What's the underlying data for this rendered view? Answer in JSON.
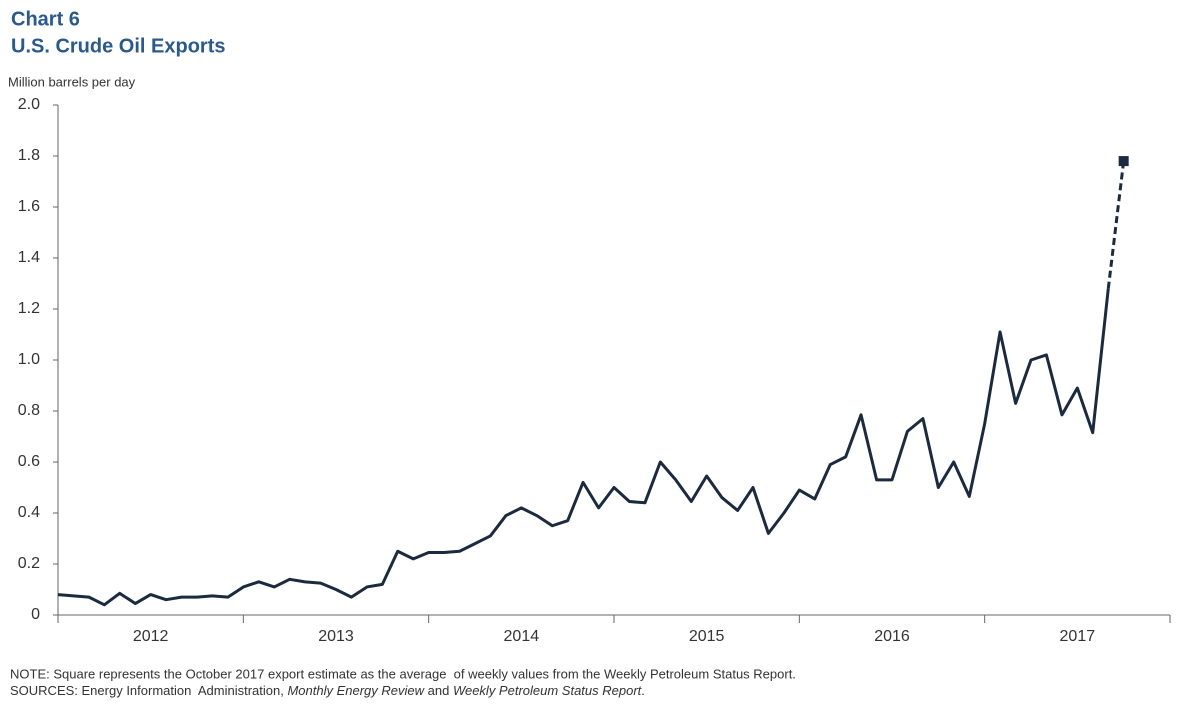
{
  "chart_data": {
    "type": "line",
    "title": "Chart 6",
    "subtitle": "U.S. Crude Oil Exports",
    "ylabel": "Million barrels per day",
    "xlim": [
      2012,
      2018
    ],
    "xticks": [
      2012,
      2013,
      2014,
      2015,
      2016,
      2017,
      2018
    ],
    "categories": [
      "2012",
      "2013",
      "2014",
      "2015",
      "2016",
      "2017"
    ],
    "ylim": [
      0,
      2
    ],
    "yticks": [
      0,
      0.2,
      0.4,
      0.6,
      0.8,
      {
        "value": 1,
        "label": "1.0"
      },
      1.2,
      1.4,
      1.6,
      1.8,
      {
        "value": 2,
        "label": "2.0"
      }
    ],
    "grid": false,
    "color": "#1b2a3f",
    "x": [
      2012,
      2012.083,
      2012.167,
      2012.25,
      2012.333,
      2012.417,
      2012.5,
      2012.583,
      2012.667,
      2012.75,
      2012.833,
      2012.917,
      2013,
      2013.083,
      2013.167,
      2013.25,
      2013.333,
      2013.417,
      2013.5,
      2013.583,
      2013.667,
      2013.75,
      2013.833,
      2013.917,
      2014,
      2014.083,
      2014.167,
      2014.25,
      2014.333,
      2014.417,
      2014.5,
      2014.583,
      2014.667,
      2014.75,
      2014.833,
      2014.917,
      2015,
      2015.083,
      2015.167,
      2015.25,
      2015.333,
      2015.417,
      2015.5,
      2015.583,
      2015.667,
      2015.75,
      2015.833,
      2015.917,
      2016,
      2016.083,
      2016.167,
      2016.25,
      2016.333,
      2016.417,
      2016.5,
      2016.583,
      2016.667,
      2016.75,
      2016.833,
      2016.917,
      2017,
      2017.083,
      2017.167,
      2017.25,
      2017.333,
      2017.417,
      2017.5,
      2017.583,
      2017.667
    ],
    "values": [
      0.08,
      0.075,
      0.07,
      0.04,
      0.085,
      0.045,
      0.08,
      0.06,
      0.07,
      0.07,
      0.075,
      0.07,
      0.11,
      0.13,
      0.11,
      0.14,
      0.13,
      0.125,
      0.1,
      0.07,
      0.11,
      0.12,
      0.25,
      0.22,
      0.245,
      0.245,
      0.25,
      0.28,
      0.31,
      0.39,
      0.42,
      0.39,
      0.35,
      0.37,
      0.52,
      0.42,
      0.5,
      0.445,
      0.44,
      0.6,
      0.53,
      0.445,
      0.545,
      0.46,
      0.41,
      0.5,
      0.32,
      0.4,
      0.49,
      0.455,
      0.59,
      0.62,
      0.785,
      0.53,
      0.53,
      0.72,
      0.77,
      0.5,
      0.6,
      0.465,
      0.75,
      1.11,
      0.83,
      1.0,
      1.02,
      0.785,
      0.89,
      0.715,
      1.28
    ],
    "estimate": {
      "x": 2017.75,
      "value": 1.78
    },
    "note": "NOTE: Square represents the October 2017 export estimate as the average  of weekly values from the Weekly Petroleum Status Report.",
    "sources": [
      {
        "text": "SOURCES: Energy Information  Administration, ",
        "italic": false
      },
      {
        "text": "Monthly Energy Review",
        "italic": true
      },
      {
        "text": " and ",
        "italic": false
      },
      {
        "text": "Weekly Petroleum Status Report",
        "italic": true
      },
      {
        "text": ".",
        "italic": false
      }
    ]
  }
}
